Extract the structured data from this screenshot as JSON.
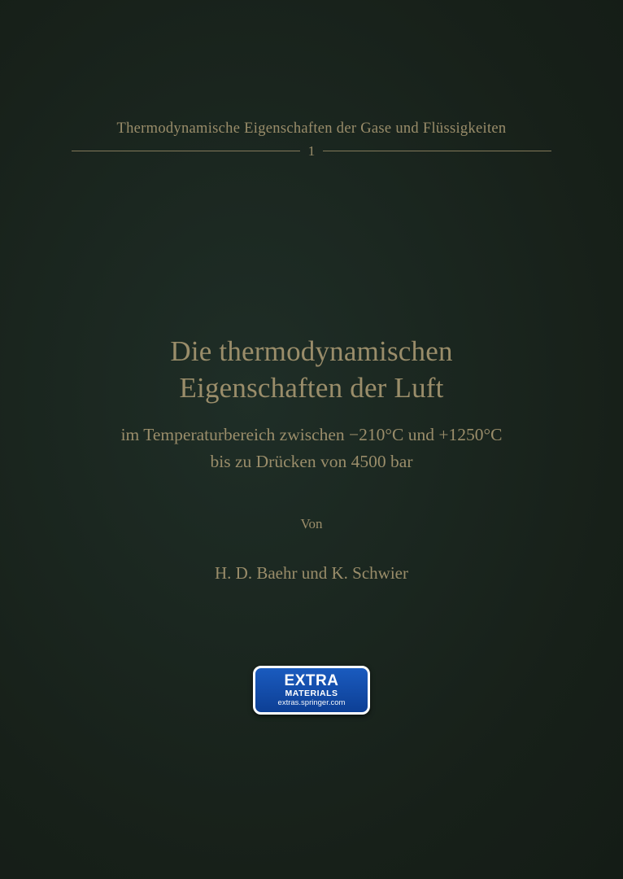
{
  "colors": {
    "cover_bg_center": "#1f2e27",
    "cover_bg_edge": "#141c16",
    "text": "#9a8d6a",
    "rule": "#8f8360",
    "badge_top": "#1a5bbf",
    "badge_bottom": "#0d3f95",
    "badge_border": "#ffffff",
    "badge_text": "#ffffff"
  },
  "typography": {
    "series_fontsize_pt": 14,
    "volume_fontsize_pt": 13,
    "title_fontsize_pt": 26,
    "subtitle_fontsize_pt": 16,
    "von_fontsize_pt": 13,
    "authors_fontsize_pt": 16,
    "font_family": "serif"
  },
  "series": {
    "title": "Thermodynamische Eigenschaften der Gase und Flüssigkeiten",
    "volume": "1"
  },
  "title": {
    "line1": "Die thermodynamischen",
    "line2": "Eigenschaften der Luft"
  },
  "subtitle": {
    "line1": "im Temperaturbereich zwischen −210°C und +1250°C",
    "line2": "bis zu Drücken von 4500 bar"
  },
  "byline": {
    "von": "Von",
    "authors": "H. D. Baehr und K. Schwier"
  },
  "badge": {
    "line1": "EXTRA",
    "line2": "MATERIALS",
    "line3": "extras.springer.com"
  }
}
